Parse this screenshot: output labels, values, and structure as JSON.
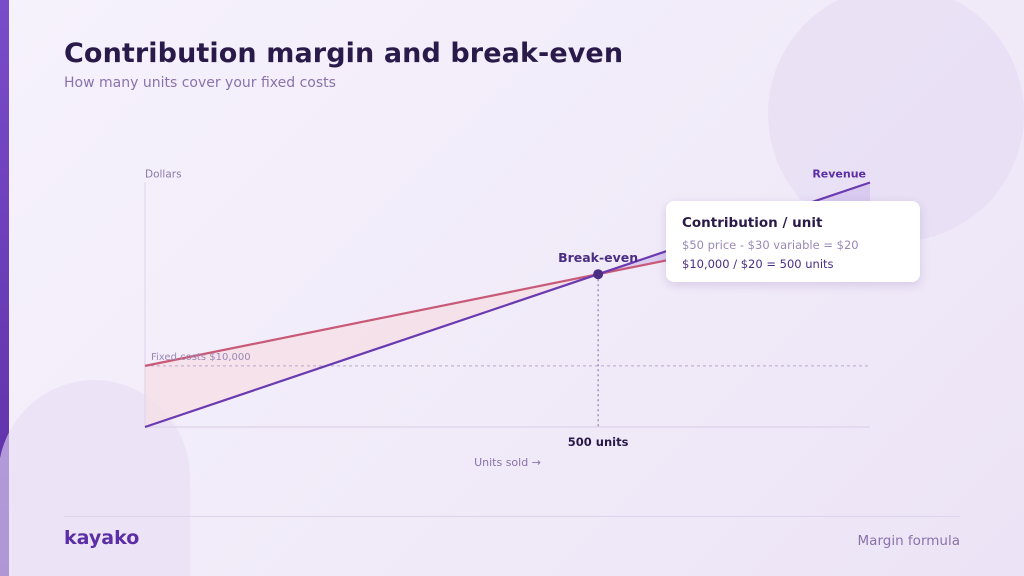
{
  "slide": {
    "title": "Contribution margin and break-even",
    "subtitle": "How many units cover your fixed costs"
  },
  "chart_data": {
    "type": "line",
    "ylabel": "Dollars",
    "xlabel": "Units sold →",
    "xlim": [
      0,
      800
    ],
    "ylim": [
      0,
      40000
    ],
    "grid": false,
    "series": [
      {
        "name": "Revenue",
        "color": "#6a3ab0",
        "x": [
          0,
          800
        ],
        "y": [
          0,
          40000
        ]
      },
      {
        "color": "#c85a78",
        "x": [
          0,
          800
        ],
        "y": [
          10000,
          34000
        ]
      }
    ],
    "fixed_costs": {
      "label": "Fixed costs $10,000",
      "value": 10000
    },
    "break_even": {
      "label": "Break-even",
      "x": 500,
      "y": 25000,
      "tick_label": "500 units"
    },
    "colors": {
      "accent": "#5b2ea6",
      "loss_fill": "#f6dfe6",
      "gain_fill": "#d6c6ee",
      "fixed_line": "#b8a8cc"
    }
  },
  "callout": {
    "title": "Contribution / unit",
    "line1": "$50 price - $30 variable = $20",
    "line2": "$10,000 / $20 = 500 units"
  },
  "footer": {
    "logo": "kayako",
    "label": "Margin formula"
  }
}
